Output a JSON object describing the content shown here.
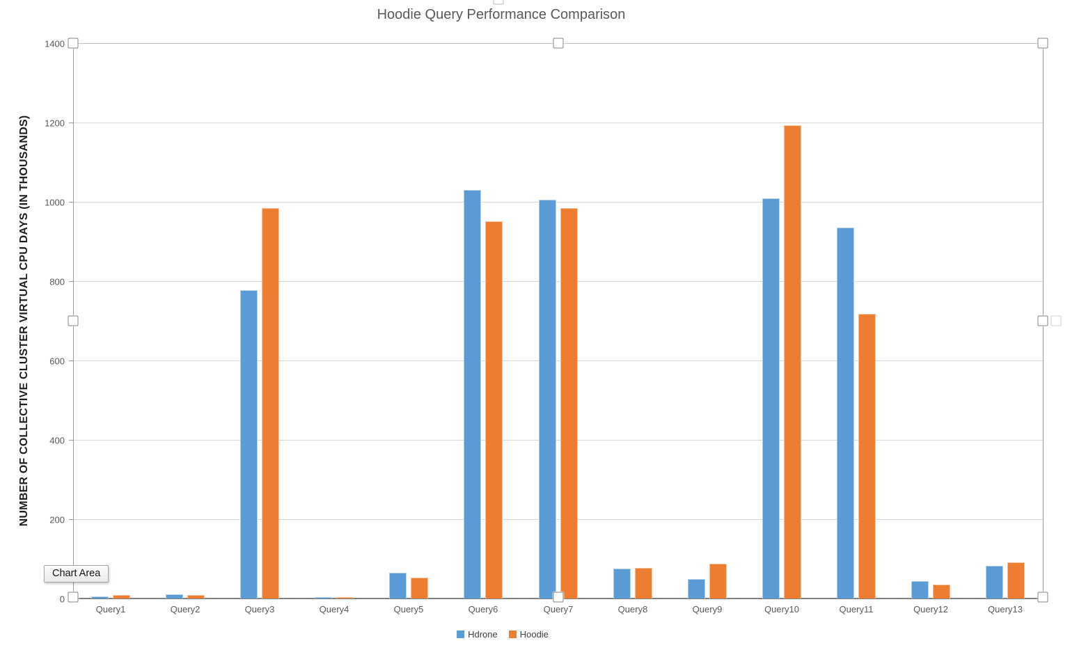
{
  "chart_data": {
    "type": "bar",
    "title": "Hoodie Query Performance Comparison",
    "xlabel": "",
    "ylabel": "NUMBER OF COLLECTIVE CLUSTER VIRTUAL CPU DAYS (IN THOUSANDS)",
    "categories": [
      "Query1",
      "Query2",
      "Query3",
      "Query4",
      "Query5",
      "Query6",
      "Query7",
      "Query8",
      "Query9",
      "Query10",
      "Query11",
      "Query12",
      "Query13"
    ],
    "series": [
      {
        "name": "Hdrone",
        "color": "#5B9BD5",
        "values": [
          6,
          10,
          777,
          4,
          65,
          1030,
          1006,
          75,
          50,
          1008,
          935,
          43,
          82
        ]
      },
      {
        "name": "Hoodie",
        "color": "#ED7D31",
        "values": [
          9,
          9,
          985,
          4,
          52,
          950,
          985,
          77,
          88,
          1193,
          718,
          35,
          91
        ]
      }
    ],
    "ylim": [
      0,
      1400
    ],
    "yticks": [
      0,
      200,
      400,
      600,
      800,
      1000,
      1200,
      1400
    ],
    "grid": true,
    "legend_position": "bottom"
  },
  "tooltip": {
    "label": "Chart Area"
  },
  "colors": {
    "hdrone": "#5B9BD5",
    "hoodie": "#ED7D31",
    "gridline": "#d9d9d9",
    "axis": "#7f7f7f",
    "text_muted": "#595959"
  }
}
